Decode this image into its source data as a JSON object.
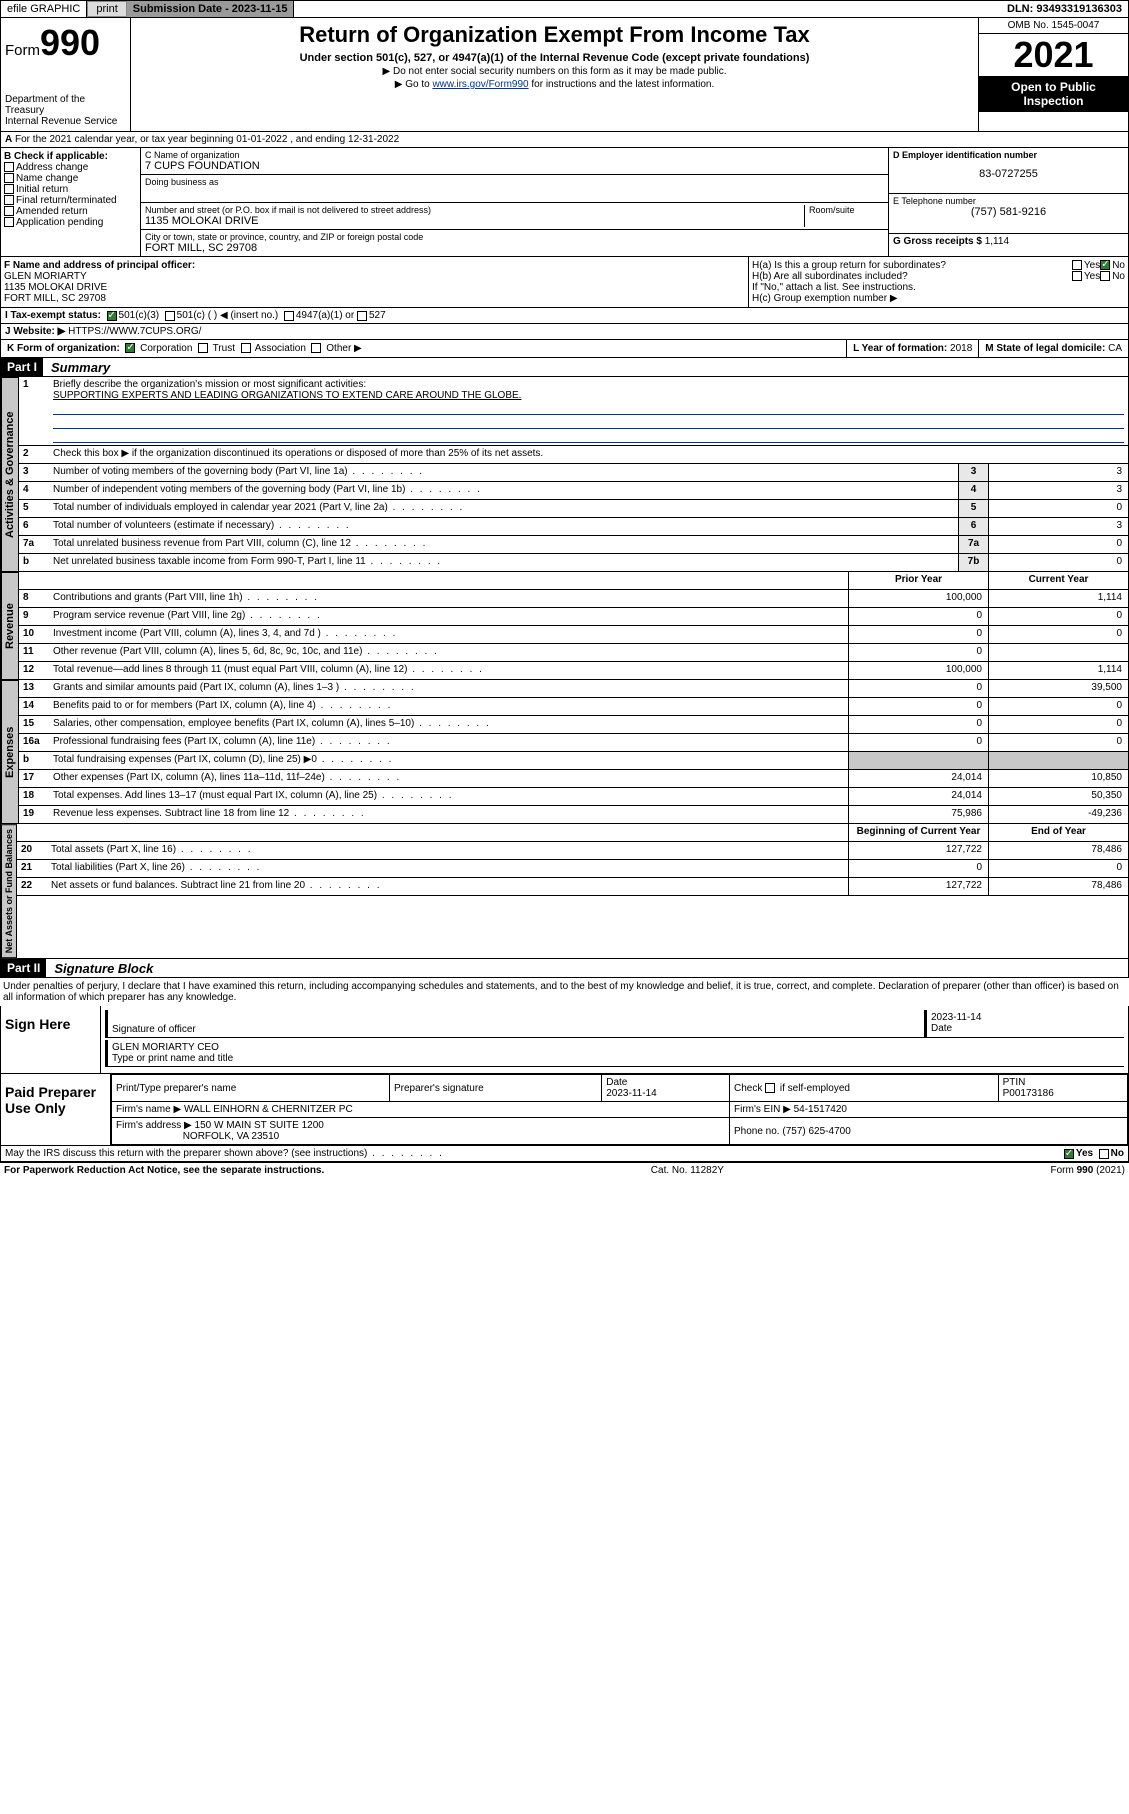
{
  "topbar": {
    "efile": "efile GRAPHIC",
    "print": "print",
    "subdate_label": "Submission Date - 2023-11-15",
    "dln": "DLN: 93493319136303"
  },
  "header": {
    "form_word": "Form",
    "form_num": "990",
    "title": "Return of Organization Exempt From Income Tax",
    "subtitle": "Under section 501(c), 527, or 4947(a)(1) of the Internal Revenue Code (except private foundations)",
    "instruct1": "▶ Do not enter social security numbers on this form as it may be made public.",
    "instruct2_pre": "▶ Go to ",
    "instruct2_link": "www.irs.gov/Form990",
    "instruct2_post": " for instructions and the latest information.",
    "dept": "Department of the Treasury",
    "irs": "Internal Revenue Service",
    "omb": "OMB No. 1545-0047",
    "year": "2021",
    "inspection": "Open to Public Inspection"
  },
  "line_a": "For the 2021 calendar year, or tax year beginning 01-01-2022    , and ending 12-31-2022",
  "box_b": {
    "label": "B Check if applicable:",
    "items": [
      "Address change",
      "Name change",
      "Initial return",
      "Final return/terminated",
      "Amended return",
      "Application pending"
    ]
  },
  "box_c": {
    "name_label": "C Name of organization",
    "name": "7 CUPS FOUNDATION",
    "dba_label": "Doing business as",
    "addr_label": "Number and street (or P.O. box if mail is not delivered to street address)",
    "room_label": "Room/suite",
    "addr": "1135 MOLOKAI DRIVE",
    "city_label": "City or town, state or province, country, and ZIP or foreign postal code",
    "city": "FORT MILL, SC  29708"
  },
  "box_d": {
    "label": "D Employer identification number",
    "val": "83-0727255"
  },
  "box_e": {
    "label": "E Telephone number",
    "val": "(757) 581-9216"
  },
  "box_g": {
    "label": "G Gross receipts $",
    "val": "1,114"
  },
  "box_f": {
    "label": "F  Name and address of principal officer:",
    "name": "GLEN MORIARTY",
    "addr1": "1135 MOLOKAI DRIVE",
    "addr2": "FORT MILL, SC  29708"
  },
  "box_h": {
    "ha": "H(a)  Is this a group return for subordinates?",
    "hb": "H(b)  Are all subordinates included?",
    "hb_note": "If \"No,\" attach a list. See instructions.",
    "hc": "H(c)  Group exemption number ▶",
    "yes": "Yes",
    "no": "No"
  },
  "row_i": {
    "label": "I    Tax-exempt status:",
    "opts": [
      "501(c)(3)",
      "501(c) (   ) ◀ (insert no.)",
      "4947(a)(1) or",
      "527"
    ]
  },
  "row_j": {
    "label": "J    Website: ▶",
    "val": "HTTPS://WWW.7CUPS.ORG/"
  },
  "row_k": {
    "label": "K Form of organization:",
    "opts": [
      "Corporation",
      "Trust",
      "Association",
      "Other ▶"
    ]
  },
  "row_l": {
    "label": "L Year of formation:",
    "val": "2018"
  },
  "row_m": {
    "label": "M State of legal domicile:",
    "val": "CA"
  },
  "part1": {
    "num": "Part I",
    "title": "Summary"
  },
  "summary": {
    "q1": "Briefly describe the organization's mission or most significant activities:",
    "mission": "SUPPORTING EXPERTS AND LEADING ORGANIZATIONS TO EXTEND CARE AROUND THE GLOBE.",
    "q2": "Check this box ▶        if the organization discontinued its operations or disposed of more than 25% of its net assets.",
    "rows_gov": [
      {
        "n": "3",
        "t": "Number of voting members of the governing body (Part VI, line 1a)",
        "c": "3",
        "v": "3"
      },
      {
        "n": "4",
        "t": "Number of independent voting members of the governing body (Part VI, line 1b)",
        "c": "4",
        "v": "3"
      },
      {
        "n": "5",
        "t": "Total number of individuals employed in calendar year 2021 (Part V, line 2a)",
        "c": "5",
        "v": "0"
      },
      {
        "n": "6",
        "t": "Total number of volunteers (estimate if necessary)",
        "c": "6",
        "v": "3"
      },
      {
        "n": "7a",
        "t": "Total unrelated business revenue from Part VIII, column (C), line 12",
        "c": "7a",
        "v": "0"
      },
      {
        "n": "b",
        "t": "Net unrelated business taxable income from Form 990-T, Part I, line 11",
        "c": "7b",
        "v": "0"
      }
    ],
    "hdr_prior": "Prior Year",
    "hdr_current": "Current Year",
    "rows_rev": [
      {
        "n": "8",
        "t": "Contributions and grants (Part VIII, line 1h)",
        "p": "100,000",
        "c": "1,114"
      },
      {
        "n": "9",
        "t": "Program service revenue (Part VIII, line 2g)",
        "p": "0",
        "c": "0"
      },
      {
        "n": "10",
        "t": "Investment income (Part VIII, column (A), lines 3, 4, and 7d )",
        "p": "0",
        "c": "0"
      },
      {
        "n": "11",
        "t": "Other revenue (Part VIII, column (A), lines 5, 6d, 8c, 9c, 10c, and 11e)",
        "p": "0",
        "c": ""
      },
      {
        "n": "12",
        "t": "Total revenue—add lines 8 through 11 (must equal Part VIII, column (A), line 12)",
        "p": "100,000",
        "c": "1,114"
      }
    ],
    "rows_exp": [
      {
        "n": "13",
        "t": "Grants and similar amounts paid (Part IX, column (A), lines 1–3 )",
        "p": "0",
        "c": "39,500"
      },
      {
        "n": "14",
        "t": "Benefits paid to or for members (Part IX, column (A), line 4)",
        "p": "0",
        "c": "0"
      },
      {
        "n": "15",
        "t": "Salaries, other compensation, employee benefits (Part IX, column (A), lines 5–10)",
        "p": "0",
        "c": "0"
      },
      {
        "n": "16a",
        "t": "Professional fundraising fees (Part IX, column (A), line 11e)",
        "p": "0",
        "c": "0"
      },
      {
        "n": "b",
        "t": "Total fundraising expenses (Part IX, column (D), line 25) ▶0",
        "p": "",
        "c": "",
        "shade": true
      },
      {
        "n": "17",
        "t": "Other expenses (Part IX, column (A), lines 11a–11d, 11f–24e)",
        "p": "24,014",
        "c": "10,850"
      },
      {
        "n": "18",
        "t": "Total expenses. Add lines 13–17 (must equal Part IX, column (A), line 25)",
        "p": "24,014",
        "c": "50,350"
      },
      {
        "n": "19",
        "t": "Revenue less expenses. Subtract line 18 from line 12",
        "p": "75,986",
        "c": "-49,236"
      }
    ],
    "hdr_begin": "Beginning of Current Year",
    "hdr_end": "End of Year",
    "rows_net": [
      {
        "n": "20",
        "t": "Total assets (Part X, line 16)",
        "p": "127,722",
        "c": "78,486"
      },
      {
        "n": "21",
        "t": "Total liabilities (Part X, line 26)",
        "p": "0",
        "c": "0"
      },
      {
        "n": "22",
        "t": "Net assets or fund balances. Subtract line 21 from line 20",
        "p": "127,722",
        "c": "78,486"
      }
    ]
  },
  "tabs": {
    "gov": "Activities & Governance",
    "rev": "Revenue",
    "exp": "Expenses",
    "net": "Net Assets or Fund Balances"
  },
  "part2": {
    "num": "Part II",
    "title": "Signature Block"
  },
  "penalty": "Under penalties of perjury, I declare that I have examined this return, including accompanying schedules and statements, and to the best of my knowledge and belief, it is true, correct, and complete. Declaration of preparer (other than officer) is based on all information of which preparer has any knowledge.",
  "sign": {
    "here": "Sign Here",
    "sig_label": "Signature of officer",
    "date_label": "Date",
    "date": "2023-11-14",
    "name": "GLEN MORIARTY CEO",
    "name_label": "Type or print name and title"
  },
  "paid": {
    "label": "Paid Preparer Use Only",
    "h1": "Print/Type preparer's name",
    "h2": "Preparer's signature",
    "h3": "Date",
    "date": "2023-11-14",
    "h4_pre": "Check",
    "h4_post": "if self-employed",
    "h5": "PTIN",
    "ptin": "P00173186",
    "firm_name_label": "Firm's name      ▶",
    "firm_name": "WALL EINHORN & CHERNITZER PC",
    "firm_ein_label": "Firm's EIN ▶",
    "firm_ein": "54-1517420",
    "firm_addr_label": "Firm's address ▶",
    "firm_addr1": "150 W MAIN ST SUITE 1200",
    "firm_addr2": "NORFOLK, VA  23510",
    "phone_label": "Phone no.",
    "phone": "(757) 625-4700"
  },
  "discuss": {
    "q": "May the IRS discuss this return with the preparer shown above? (see instructions)",
    "yes": "Yes",
    "no": "No"
  },
  "footer": {
    "left": "For Paperwork Reduction Act Notice, see the separate instructions.",
    "mid": "Cat. No. 11282Y",
    "right": "Form 990 (2021)"
  }
}
